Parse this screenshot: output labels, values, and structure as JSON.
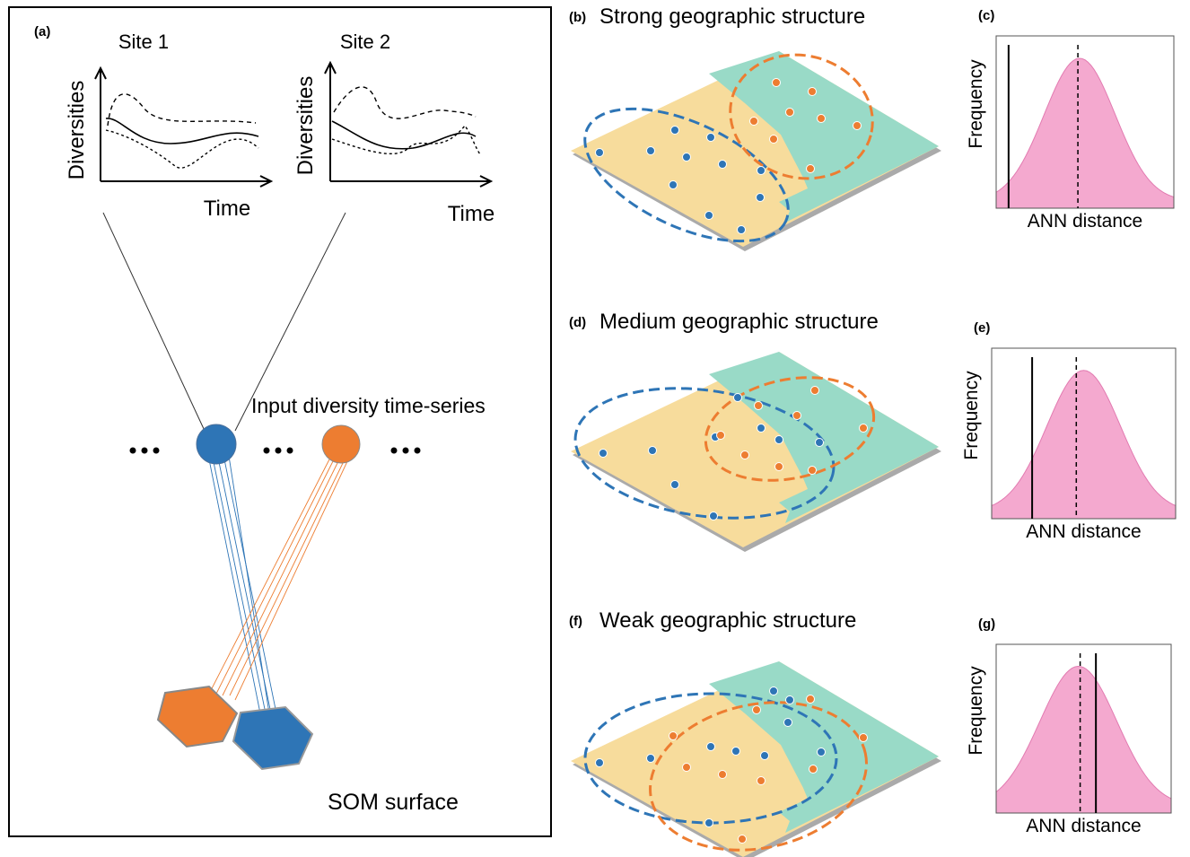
{
  "panel_a": {
    "label": "(a)",
    "sites": [
      {
        "title": "Site 1",
        "y_axis": "Diversities",
        "x_axis": "Time"
      },
      {
        "title": "Site 2",
        "y_axis": "Diversities",
        "x_axis": "Time"
      }
    ],
    "input_label": "Input diversity time-series",
    "som_label": "SOM surface"
  },
  "maps": [
    {
      "label": "(b)",
      "title": "Strong geographic structure"
    },
    {
      "label": "(d)",
      "title": "Medium geographic structure"
    },
    {
      "label": "(f)",
      "title": "Weak geographic structure"
    }
  ],
  "histograms": [
    {
      "label": "(c)",
      "y_axis": "Frequency",
      "x_axis": "ANN distance"
    },
    {
      "label": "(e)",
      "y_axis": "Frequency",
      "x_axis": "ANN distance"
    },
    {
      "label": "(g)",
      "y_axis": "Frequency",
      "x_axis": "ANN distance"
    }
  ]
}
